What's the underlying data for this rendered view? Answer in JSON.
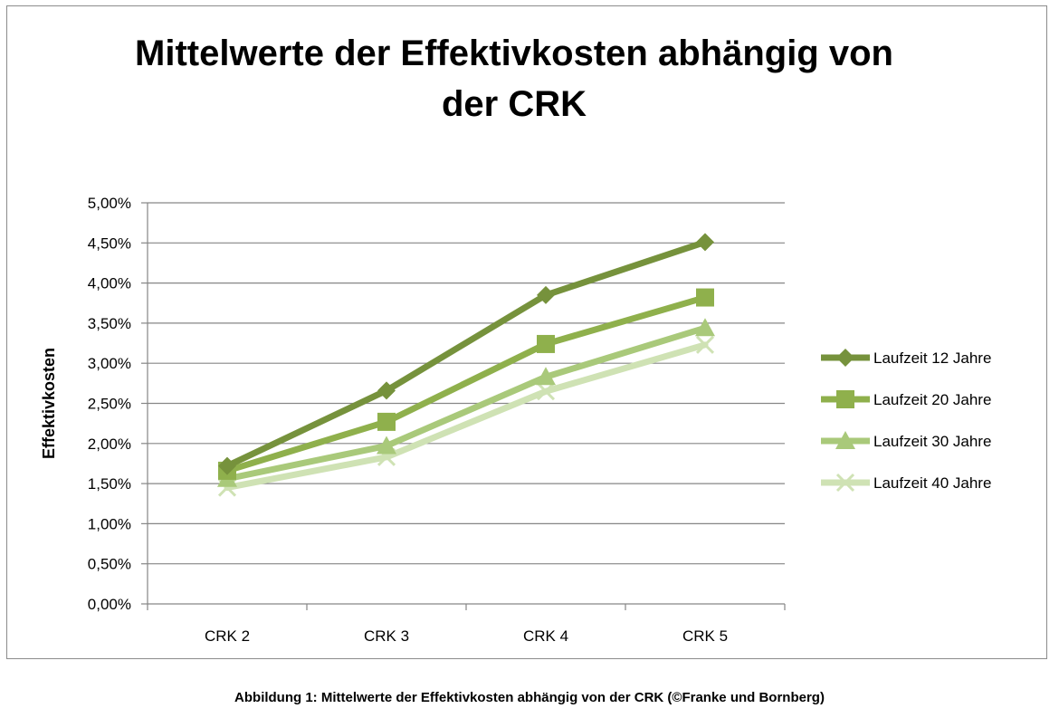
{
  "chart_data": {
    "type": "line",
    "title_lines": [
      "Mittelwerte der Effektivkosten abhängig von",
      "der CRK"
    ],
    "xlabel": "",
    "ylabel": "Effektivkosten",
    "categories": [
      "CRK 2",
      "CRK 3",
      "CRK 4",
      "CRK 5"
    ],
    "ylim": [
      0,
      0.05
    ],
    "y_ticks": [
      0,
      0.005,
      0.01,
      0.015,
      0.02,
      0.025,
      0.03,
      0.035,
      0.04,
      0.045,
      0.05
    ],
    "y_tick_labels": [
      "0,00%",
      "0,50%",
      "1,00%",
      "1,50%",
      "2,00%",
      "2,50%",
      "3,00%",
      "3,50%",
      "4,00%",
      "4,50%",
      "5,00%"
    ],
    "grid": true,
    "legend_position": "right",
    "series": [
      {
        "name": "Laufzeit 12 Jahre",
        "values": [
          0.0172,
          0.0266,
          0.0385,
          0.0451
        ],
        "color": "#76923c",
        "marker": "diamond"
      },
      {
        "name": "Laufzeit 20 Jahre",
        "values": [
          0.0166,
          0.0227,
          0.0324,
          0.0382
        ],
        "color": "#8fb04c",
        "marker": "square"
      },
      {
        "name": "Laufzeit 30 Jahre",
        "values": [
          0.0156,
          0.0197,
          0.0283,
          0.0344
        ],
        "color": "#a9c97a",
        "marker": "triangle"
      },
      {
        "name": "Laufzeit 40 Jahre",
        "values": [
          0.0145,
          0.0183,
          0.0265,
          0.0323
        ],
        "color": "#cfe2b4",
        "marker": "x"
      }
    ]
  },
  "caption": "Abbildung 1: Mittelwerte der Effektivkosten abhängig von der CRK (©Franke und Bornberg)"
}
